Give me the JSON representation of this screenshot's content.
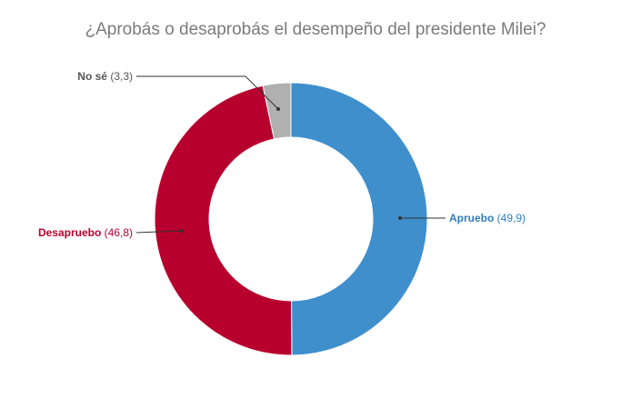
{
  "chart_data": {
    "type": "pie",
    "title": "¿Aprobás o desaprobás el desempeño del presidente Milei?",
    "slices": [
      {
        "label": "Apruebo",
        "value": 49.9,
        "value_text": "(49,9)",
        "color": "#3f8fcd",
        "label_color": "#2f7fc0"
      },
      {
        "label": "Desapruebo",
        "value": 46.8,
        "value_text": "(46,8)",
        "color": "#b8002e",
        "label_color": "#b8002e"
      },
      {
        "label": "No sé",
        "value": 3.3,
        "value_text": "(3,3)",
        "color": "#b0b0b0",
        "label_color": "#555555"
      }
    ],
    "donut": true
  }
}
